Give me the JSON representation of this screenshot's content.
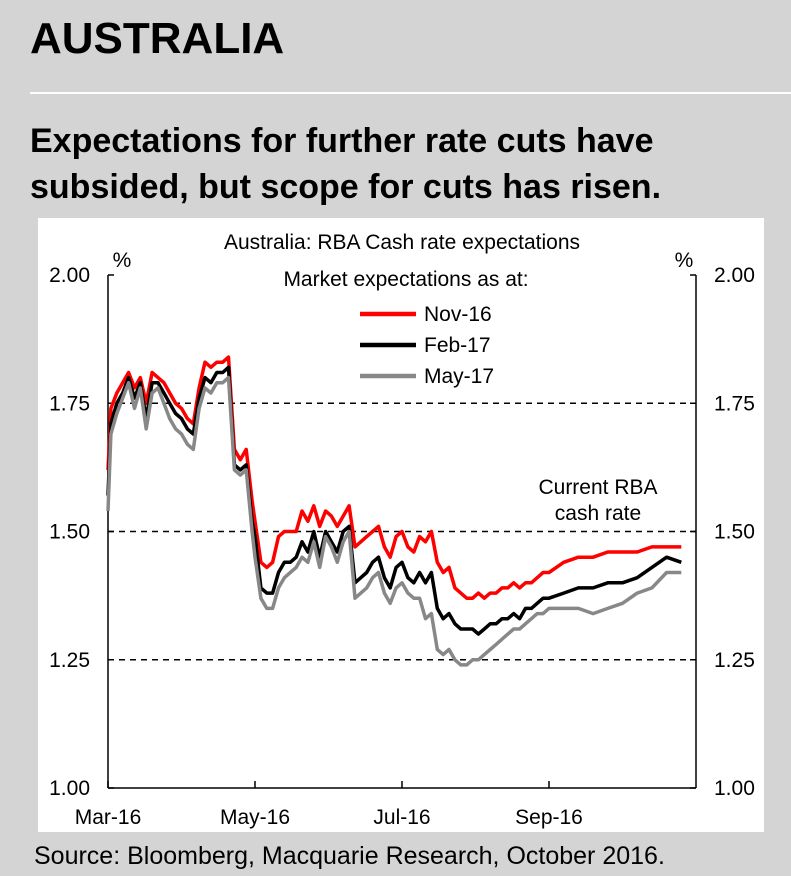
{
  "header": {
    "title": "AUSTRALIA",
    "subtitle_line1": "Expectations for further rate cuts have",
    "subtitle_line2": "subsided, but scope for cuts has risen."
  },
  "footer": {
    "source": "Source: Bloomberg, Macquarie Research, October 2016."
  },
  "chart_data": {
    "type": "line",
    "title": "Australia: RBA Cash rate expectations",
    "legend_title": "Market expectations as at:",
    "left_unit": "%",
    "right_unit": "%",
    "ylim": [
      1.0,
      2.0
    ],
    "yticks": [
      "2.00",
      "1.75",
      "1.50",
      "1.25",
      "1.00"
    ],
    "ytick_values": [
      2.0,
      1.75,
      1.5,
      1.25,
      1.0
    ],
    "dashed_gridlines": [
      1.75,
      1.5,
      1.25
    ],
    "xticks": [
      "Mar-16",
      "May-16",
      "Jul-16",
      "Sep-16"
    ],
    "x_range": [
      0,
      200
    ],
    "xtick_values": [
      0,
      50,
      100,
      150
    ],
    "annotation_line1": "Current RBA",
    "annotation_line2": "cash rate",
    "series": [
      {
        "name": "Nov-16",
        "color": "#ff0000",
        "x": [
          0,
          1,
          3,
          5,
          7,
          9,
          11,
          13,
          15,
          17,
          19,
          21,
          23,
          25,
          27,
          29,
          31,
          33,
          35,
          37,
          39,
          41,
          43,
          45,
          47,
          49,
          50,
          52,
          54,
          56,
          58,
          60,
          62,
          64,
          66,
          68,
          70,
          72,
          74,
          76,
          78,
          80,
          82,
          84,
          86,
          88,
          90,
          92,
          94,
          96,
          98,
          100,
          102,
          104,
          106,
          108,
          110,
          112,
          114,
          116,
          118,
          120,
          122,
          124,
          126,
          128,
          130,
          132,
          134,
          136,
          138,
          140,
          142,
          144,
          146,
          148,
          150,
          155,
          160,
          165,
          170,
          175,
          180,
          185,
          190,
          195
        ],
        "values": [
          1.62,
          1.74,
          1.77,
          1.79,
          1.81,
          1.78,
          1.8,
          1.75,
          1.81,
          1.8,
          1.79,
          1.77,
          1.75,
          1.74,
          1.72,
          1.71,
          1.78,
          1.83,
          1.82,
          1.83,
          1.83,
          1.84,
          1.66,
          1.64,
          1.66,
          1.56,
          1.52,
          1.44,
          1.43,
          1.44,
          1.49,
          1.5,
          1.5,
          1.5,
          1.54,
          1.52,
          1.55,
          1.51,
          1.54,
          1.53,
          1.51,
          1.53,
          1.55,
          1.47,
          1.48,
          1.49,
          1.5,
          1.51,
          1.47,
          1.45,
          1.49,
          1.5,
          1.47,
          1.46,
          1.49,
          1.48,
          1.5,
          1.44,
          1.42,
          1.43,
          1.39,
          1.38,
          1.37,
          1.37,
          1.38,
          1.37,
          1.38,
          1.38,
          1.39,
          1.39,
          1.4,
          1.39,
          1.4,
          1.4,
          1.41,
          1.42,
          1.42,
          1.44,
          1.45,
          1.45,
          1.46,
          1.46,
          1.46,
          1.47,
          1.47,
          1.47
        ]
      },
      {
        "name": "Feb-17",
        "color": "#000000",
        "x": [
          0,
          1,
          3,
          5,
          7,
          9,
          11,
          13,
          15,
          17,
          19,
          21,
          23,
          25,
          27,
          29,
          31,
          33,
          35,
          37,
          39,
          41,
          43,
          45,
          47,
          49,
          50,
          52,
          54,
          56,
          58,
          60,
          62,
          64,
          66,
          68,
          70,
          72,
          74,
          76,
          78,
          80,
          82,
          84,
          86,
          88,
          90,
          92,
          94,
          96,
          98,
          100,
          102,
          104,
          106,
          108,
          110,
          112,
          114,
          116,
          118,
          120,
          122,
          124,
          126,
          128,
          130,
          132,
          134,
          136,
          138,
          140,
          142,
          144,
          146,
          148,
          150,
          155,
          160,
          165,
          170,
          175,
          180,
          185,
          190,
          195
        ],
        "values": [
          1.57,
          1.71,
          1.75,
          1.77,
          1.8,
          1.76,
          1.79,
          1.72,
          1.79,
          1.79,
          1.77,
          1.75,
          1.73,
          1.72,
          1.7,
          1.69,
          1.76,
          1.8,
          1.79,
          1.81,
          1.81,
          1.82,
          1.63,
          1.62,
          1.63,
          1.52,
          1.49,
          1.39,
          1.38,
          1.38,
          1.42,
          1.44,
          1.44,
          1.45,
          1.48,
          1.46,
          1.5,
          1.45,
          1.5,
          1.48,
          1.46,
          1.5,
          1.51,
          1.4,
          1.41,
          1.42,
          1.44,
          1.45,
          1.41,
          1.39,
          1.43,
          1.44,
          1.41,
          1.4,
          1.42,
          1.4,
          1.42,
          1.35,
          1.33,
          1.34,
          1.32,
          1.31,
          1.31,
          1.31,
          1.3,
          1.31,
          1.32,
          1.32,
          1.33,
          1.33,
          1.34,
          1.33,
          1.35,
          1.35,
          1.36,
          1.37,
          1.37,
          1.38,
          1.39,
          1.39,
          1.4,
          1.4,
          1.41,
          1.43,
          1.45,
          1.44
        ]
      },
      {
        "name": "May-17",
        "color": "#888888",
        "x": [
          0,
          1,
          3,
          5,
          7,
          9,
          11,
          13,
          15,
          17,
          19,
          21,
          23,
          25,
          27,
          29,
          31,
          33,
          35,
          37,
          39,
          41,
          43,
          45,
          47,
          49,
          50,
          52,
          54,
          56,
          58,
          60,
          62,
          64,
          66,
          68,
          70,
          72,
          74,
          76,
          78,
          80,
          82,
          84,
          86,
          88,
          90,
          92,
          94,
          96,
          98,
          100,
          102,
          104,
          106,
          108,
          110,
          112,
          114,
          116,
          118,
          120,
          122,
          124,
          126,
          128,
          130,
          132,
          134,
          136,
          138,
          140,
          142,
          144,
          146,
          148,
          150,
          155,
          160,
          165,
          170,
          175,
          180,
          185,
          190,
          195
        ],
        "values": [
          1.54,
          1.69,
          1.73,
          1.76,
          1.79,
          1.74,
          1.78,
          1.7,
          1.77,
          1.78,
          1.75,
          1.72,
          1.7,
          1.69,
          1.67,
          1.66,
          1.74,
          1.78,
          1.77,
          1.79,
          1.79,
          1.8,
          1.62,
          1.61,
          1.62,
          1.5,
          1.45,
          1.37,
          1.35,
          1.35,
          1.39,
          1.41,
          1.42,
          1.43,
          1.45,
          1.44,
          1.48,
          1.43,
          1.49,
          1.47,
          1.44,
          1.48,
          1.5,
          1.37,
          1.38,
          1.39,
          1.41,
          1.42,
          1.38,
          1.36,
          1.39,
          1.4,
          1.38,
          1.37,
          1.37,
          1.33,
          1.34,
          1.27,
          1.26,
          1.27,
          1.25,
          1.24,
          1.24,
          1.25,
          1.25,
          1.26,
          1.27,
          1.28,
          1.29,
          1.3,
          1.31,
          1.31,
          1.32,
          1.33,
          1.34,
          1.34,
          1.35,
          1.35,
          1.35,
          1.34,
          1.35,
          1.36,
          1.38,
          1.39,
          1.42,
          1.42
        ]
      }
    ]
  }
}
